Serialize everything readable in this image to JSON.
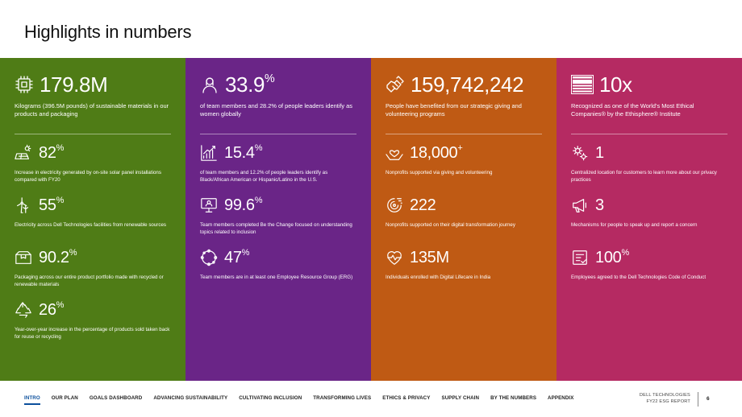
{
  "title": "Highlights in numbers",
  "panels": [
    {
      "hero": {
        "value": "179.8M",
        "sup": "",
        "icon": "chip-icon",
        "desc": "Kilograms (396.5M pounds) of sustainable materials in our products and packaging"
      },
      "stats": [
        {
          "value": "82",
          "sup": "%",
          "icon": "solar-panel-icon",
          "desc": "Increase in electricity generated by on-site solar panel installations compared with FY20"
        },
        {
          "value": "55",
          "sup": "%",
          "icon": "wind-turbine-icon",
          "desc": "Electricity across Dell Technologies facilities from renewable sources"
        },
        {
          "value": "90.2",
          "sup": "%",
          "icon": "packaging-icon",
          "desc": "Packaging across our entire product portfolio made with recycled or renewable materials"
        },
        {
          "value": "26",
          "sup": "%",
          "icon": "recycle-icon",
          "desc": "Year-over-year increase in the percentage of products sold taken back for reuse or recycling"
        }
      ]
    },
    {
      "hero": {
        "value": "33.9",
        "sup": "%",
        "icon": "woman-icon",
        "desc": "of team members and 28.2% of people leaders identify as women globally"
      },
      "stats": [
        {
          "value": "15.4",
          "sup": "%",
          "icon": "growth-chart-icon",
          "desc": "of team members and 12.2% of people leaders identify as Black/African American or Hispanic/Latino in the U.S."
        },
        {
          "value": "99.6",
          "sup": "%",
          "icon": "learning-icon",
          "desc": "Team members completed Be the Change focused on understanding topics related to inclusion"
        },
        {
          "value": "47",
          "sup": "%",
          "icon": "group-circle-icon",
          "desc": "Team members are in at least one Employee Resource Group (ERG)"
        }
      ]
    },
    {
      "hero": {
        "value": "159,742,242",
        "sup": "",
        "icon": "helping-hands-icon",
        "desc": "People have benefited from our strategic giving and volunteering programs"
      },
      "stats": [
        {
          "value": "18,000",
          "sup": "+",
          "icon": "heart-hands-icon",
          "desc": "Nonprofits supported via giving and volunteering"
        },
        {
          "value": "222",
          "sup": "",
          "icon": "digital-brain-icon",
          "desc": "Nonprofits supported on their digital transformation journey"
        },
        {
          "value": "135M",
          "sup": "",
          "icon": "heartbeat-icon",
          "desc": "Individuals enrolled with Digital Lifecare in India"
        }
      ]
    },
    {
      "hero": {
        "value": "10x",
        "sup": "",
        "icon": "ethical-companies-badge-icon",
        "desc": "Recognized as one of the World's Most Ethical Companies® by the Ethisphere® Institute"
      },
      "stats": [
        {
          "value": "1",
          "sup": "",
          "icon": "privacy-gears-icon",
          "desc": "Centralized location for customers to learn more about our privacy practices"
        },
        {
          "value": "3",
          "sup": "",
          "icon": "megaphone-icon",
          "desc": "Mechanisms for people to speak up and report a concern"
        },
        {
          "value": "100",
          "sup": "%",
          "icon": "code-of-conduct-icon",
          "desc": "Employees agreed to the Dell Technologies Code of Conduct"
        }
      ]
    }
  ],
  "footer": {
    "nav": [
      "INTRO",
      "OUR PLAN",
      "GOALS DASHBOARD",
      "ADVANCING SUSTAINABILITY",
      "CULTIVATING INCLUSION",
      "TRANSFORMING LIVES",
      "ETHICS & PRIVACY",
      "SUPPLY CHAIN",
      "BY THE NUMBERS",
      "APPENDIX"
    ],
    "active": "INTRO",
    "brand_line1": "DELL TECHNOLOGIES",
    "brand_line2": "FY22 ESG REPORT",
    "page": "6"
  },
  "colors": {
    "green": "#4f7c16",
    "purple": "#6a2587",
    "orange": "#bf5a14",
    "pink": "#b52a62",
    "nav_active": "#0b4f9c"
  }
}
